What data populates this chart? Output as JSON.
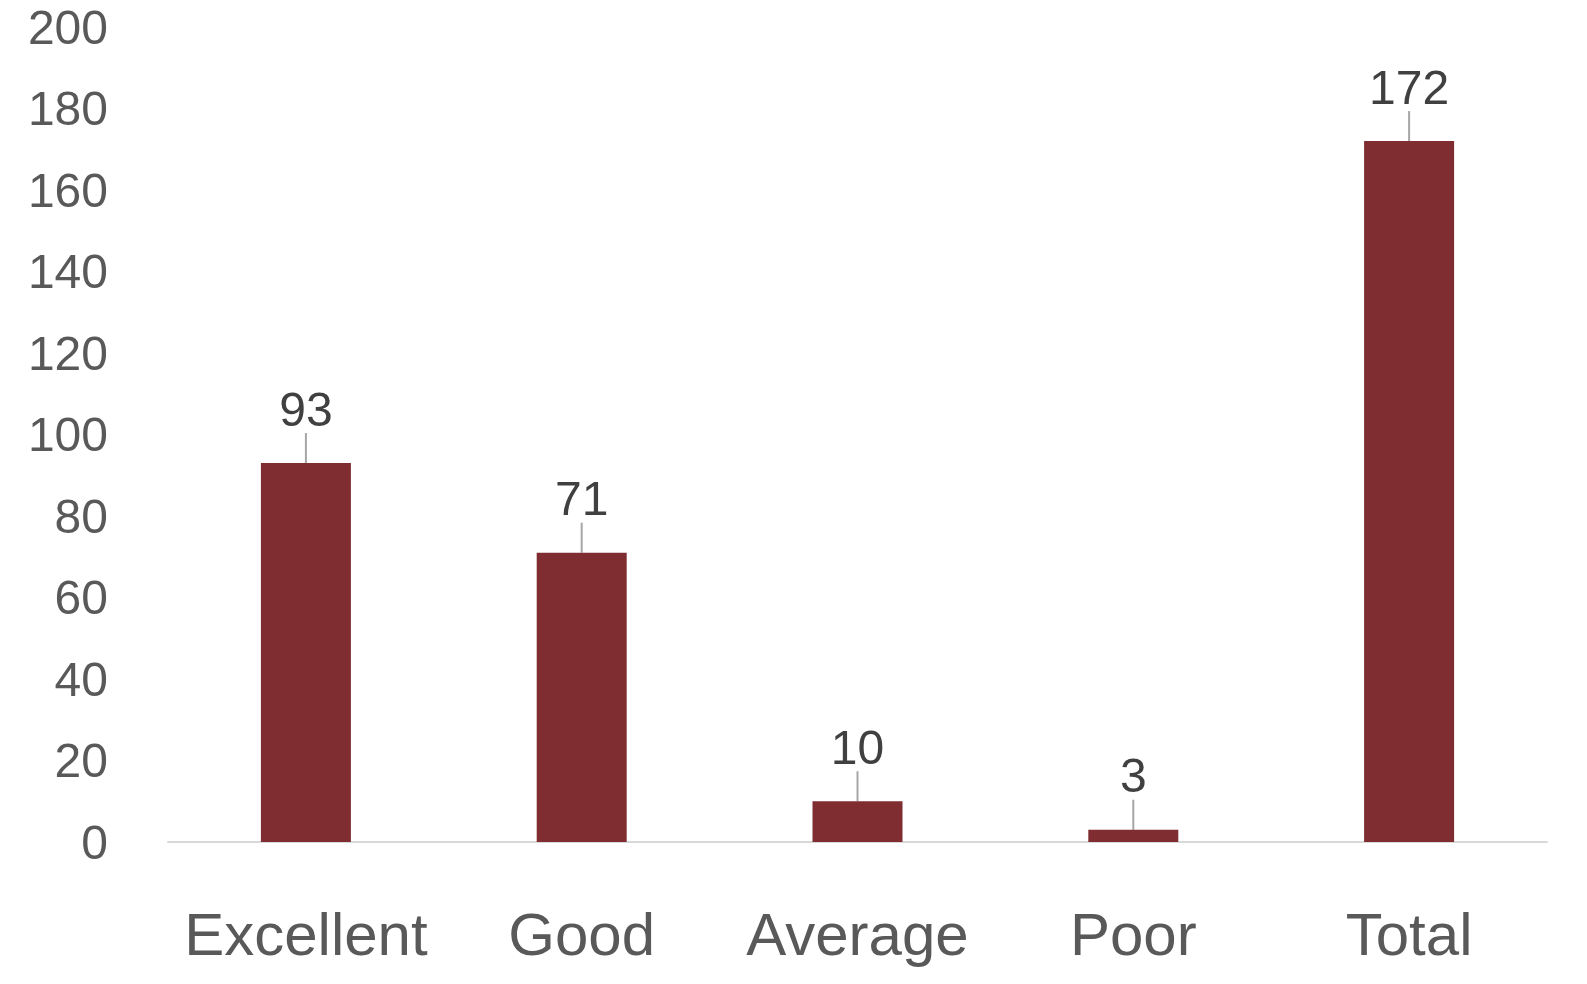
{
  "chart_data": {
    "type": "bar",
    "categories": [
      "Excellent",
      "Good",
      "Average",
      "Poor",
      "Total"
    ],
    "values": [
      93,
      71,
      10,
      3,
      172
    ],
    "color": "#7f2d30",
    "ylim": [
      0,
      200
    ],
    "yticks": [
      0,
      20,
      40,
      60,
      80,
      100,
      120,
      140,
      160,
      180,
      200
    ],
    "data_labels": true
  }
}
